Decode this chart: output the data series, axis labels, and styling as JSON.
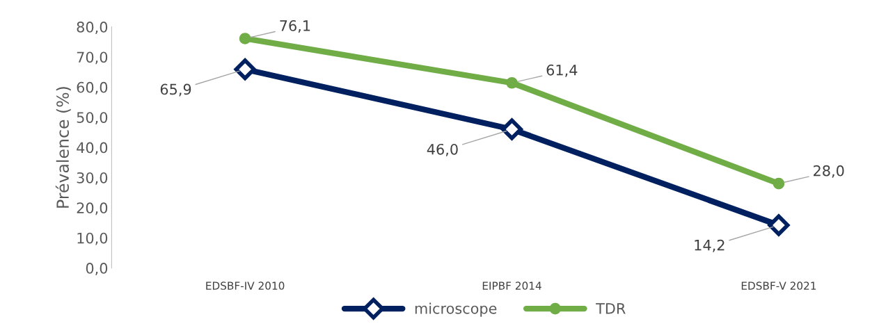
{
  "chart_data": {
    "type": "line",
    "ylabel": "Prévalence (%)",
    "categories": [
      "EDSBF-IV 2010",
      "EIPBF 2014",
      "EDSBF-V 2021"
    ],
    "ylim": [
      0,
      80
    ],
    "yticks": [
      {
        "value": 0,
        "label": "0,0"
      },
      {
        "value": 10,
        "label": "10,0"
      },
      {
        "value": 20,
        "label": "20,0"
      },
      {
        "value": 30,
        "label": "30,0"
      },
      {
        "value": 40,
        "label": "40,0"
      },
      {
        "value": 50,
        "label": "50,0"
      },
      {
        "value": 60,
        "label": "60,0"
      },
      {
        "value": 70,
        "label": "70,0"
      },
      {
        "value": 80,
        "label": "80,0"
      }
    ],
    "series": [
      {
        "name": "microscope",
        "color": "#002060",
        "values": [
          65.9,
          46.0,
          14.2
        ],
        "value_labels": [
          "65,9",
          "46,0",
          "14,2"
        ],
        "marker": "diamond"
      },
      {
        "name": "TDR",
        "color": "#70ad47",
        "values": [
          76.1,
          61.4,
          28.0
        ],
        "value_labels": [
          "76,1",
          "61,4",
          "28,0"
        ],
        "marker": "circle"
      }
    ],
    "grid": false,
    "legend": "bottom"
  }
}
